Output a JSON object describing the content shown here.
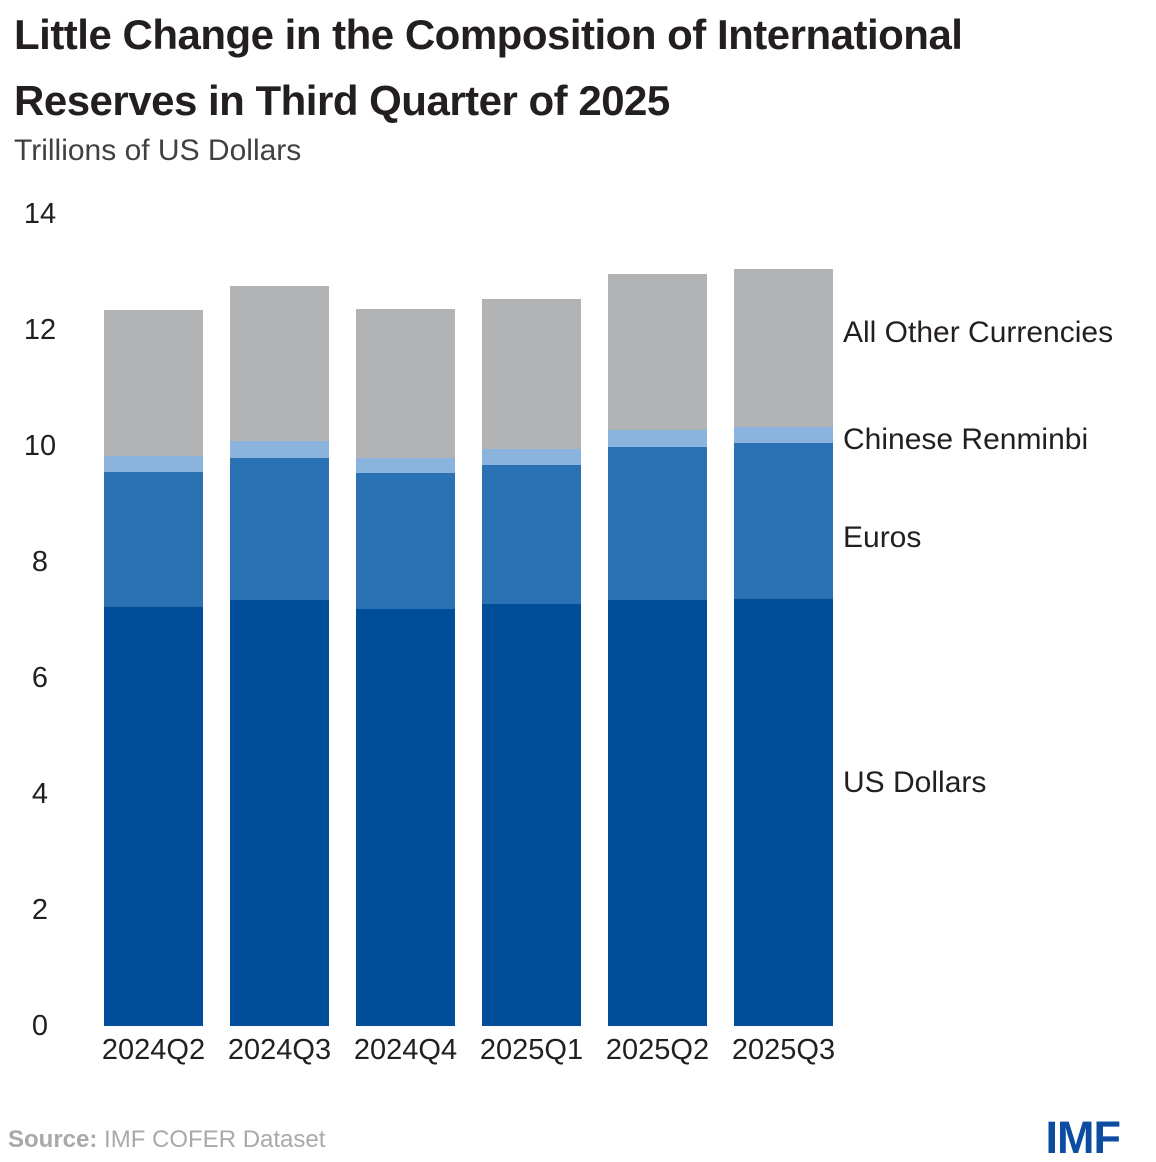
{
  "title": {
    "line1": "Little Change in the Composition of International",
    "line2": "Reserves in Third Quarter of 2025"
  },
  "subtitle": "Trillions of US Dollars",
  "source": {
    "label": "Source:",
    "text": "IMF COFER Dataset"
  },
  "logo_text": "IMF",
  "colors": {
    "us_dollars": "#004e9a",
    "euros": "#2b72b5",
    "chinese_renminbi": "#8ab3de",
    "all_other_currencies": "#b1b3b4",
    "text_dark": "#231f20",
    "source_gray": "#a9a9a9",
    "logo_blue": "#0c4da2"
  },
  "chart_data": {
    "type": "bar",
    "stacked": true,
    "title": "Little Change in the Composition of International Reserves in Third Quarter of 2025",
    "subtitle_units": "Trillions of US Dollars",
    "categories": [
      "2024Q2",
      "2024Q3",
      "2024Q4",
      "2025Q1",
      "2025Q2",
      "2025Q3"
    ],
    "series": [
      {
        "name": "US Dollars",
        "color": "#004e9a",
        "values": [
          7.22,
          7.34,
          7.19,
          7.28,
          7.34,
          7.37
        ]
      },
      {
        "name": "Euros",
        "color": "#2b72b5",
        "values": [
          2.34,
          2.45,
          2.35,
          2.4,
          2.65,
          2.69
        ]
      },
      {
        "name": "Chinese Renminbi",
        "color": "#8ab3de",
        "values": [
          0.26,
          0.3,
          0.26,
          0.26,
          0.28,
          0.26
        ]
      },
      {
        "name": "All Other Currencies",
        "color": "#b1b3b4",
        "values": [
          2.53,
          2.67,
          2.56,
          2.59,
          2.7,
          2.73
        ]
      }
    ],
    "totals": [
      12.35,
      12.76,
      12.36,
      12.53,
      12.97,
      13.05
    ],
    "xlabel": "",
    "ylabel": "Trillions of US Dollars",
    "ylim": [
      0,
      14
    ],
    "yticks": [
      0,
      2,
      4,
      6,
      8,
      10,
      12,
      14
    ],
    "grid": false,
    "legend_position": "right-annotations"
  }
}
